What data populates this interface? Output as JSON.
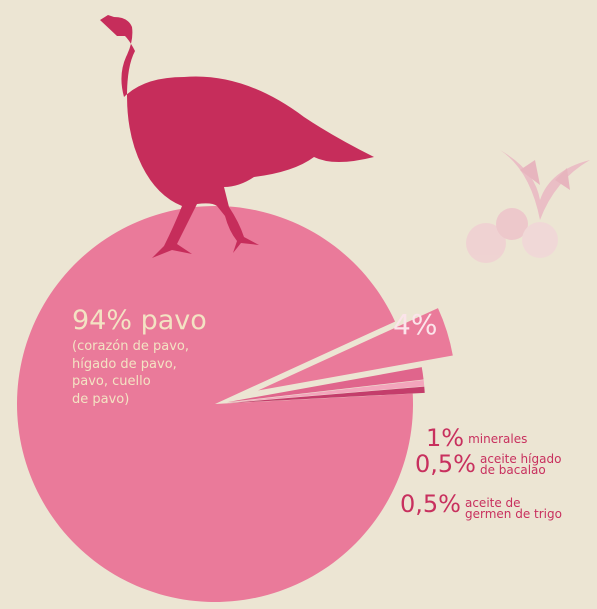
{
  "chart_data": {
    "type": "pie",
    "categories": [
      "pavo",
      null,
      "minerales",
      "aceite hígado de bacalao",
      "aceite de germen de trigo"
    ],
    "values": [
      94,
      4,
      1,
      0.5,
      0.5
    ],
    "value_labels": [
      "94%",
      "4%",
      "1%",
      "0,5%",
      "0,5%"
    ],
    "colors": [
      "#ea7a9a",
      "#ea7a9a",
      "#e0658c",
      "#f3a5bc",
      "#c43d6b"
    ],
    "annotation_lines": [
      "(corazón de pavo,",
      "hígado de pavo,",
      "pavo, cuello",
      "de pavo)"
    ]
  }
}
